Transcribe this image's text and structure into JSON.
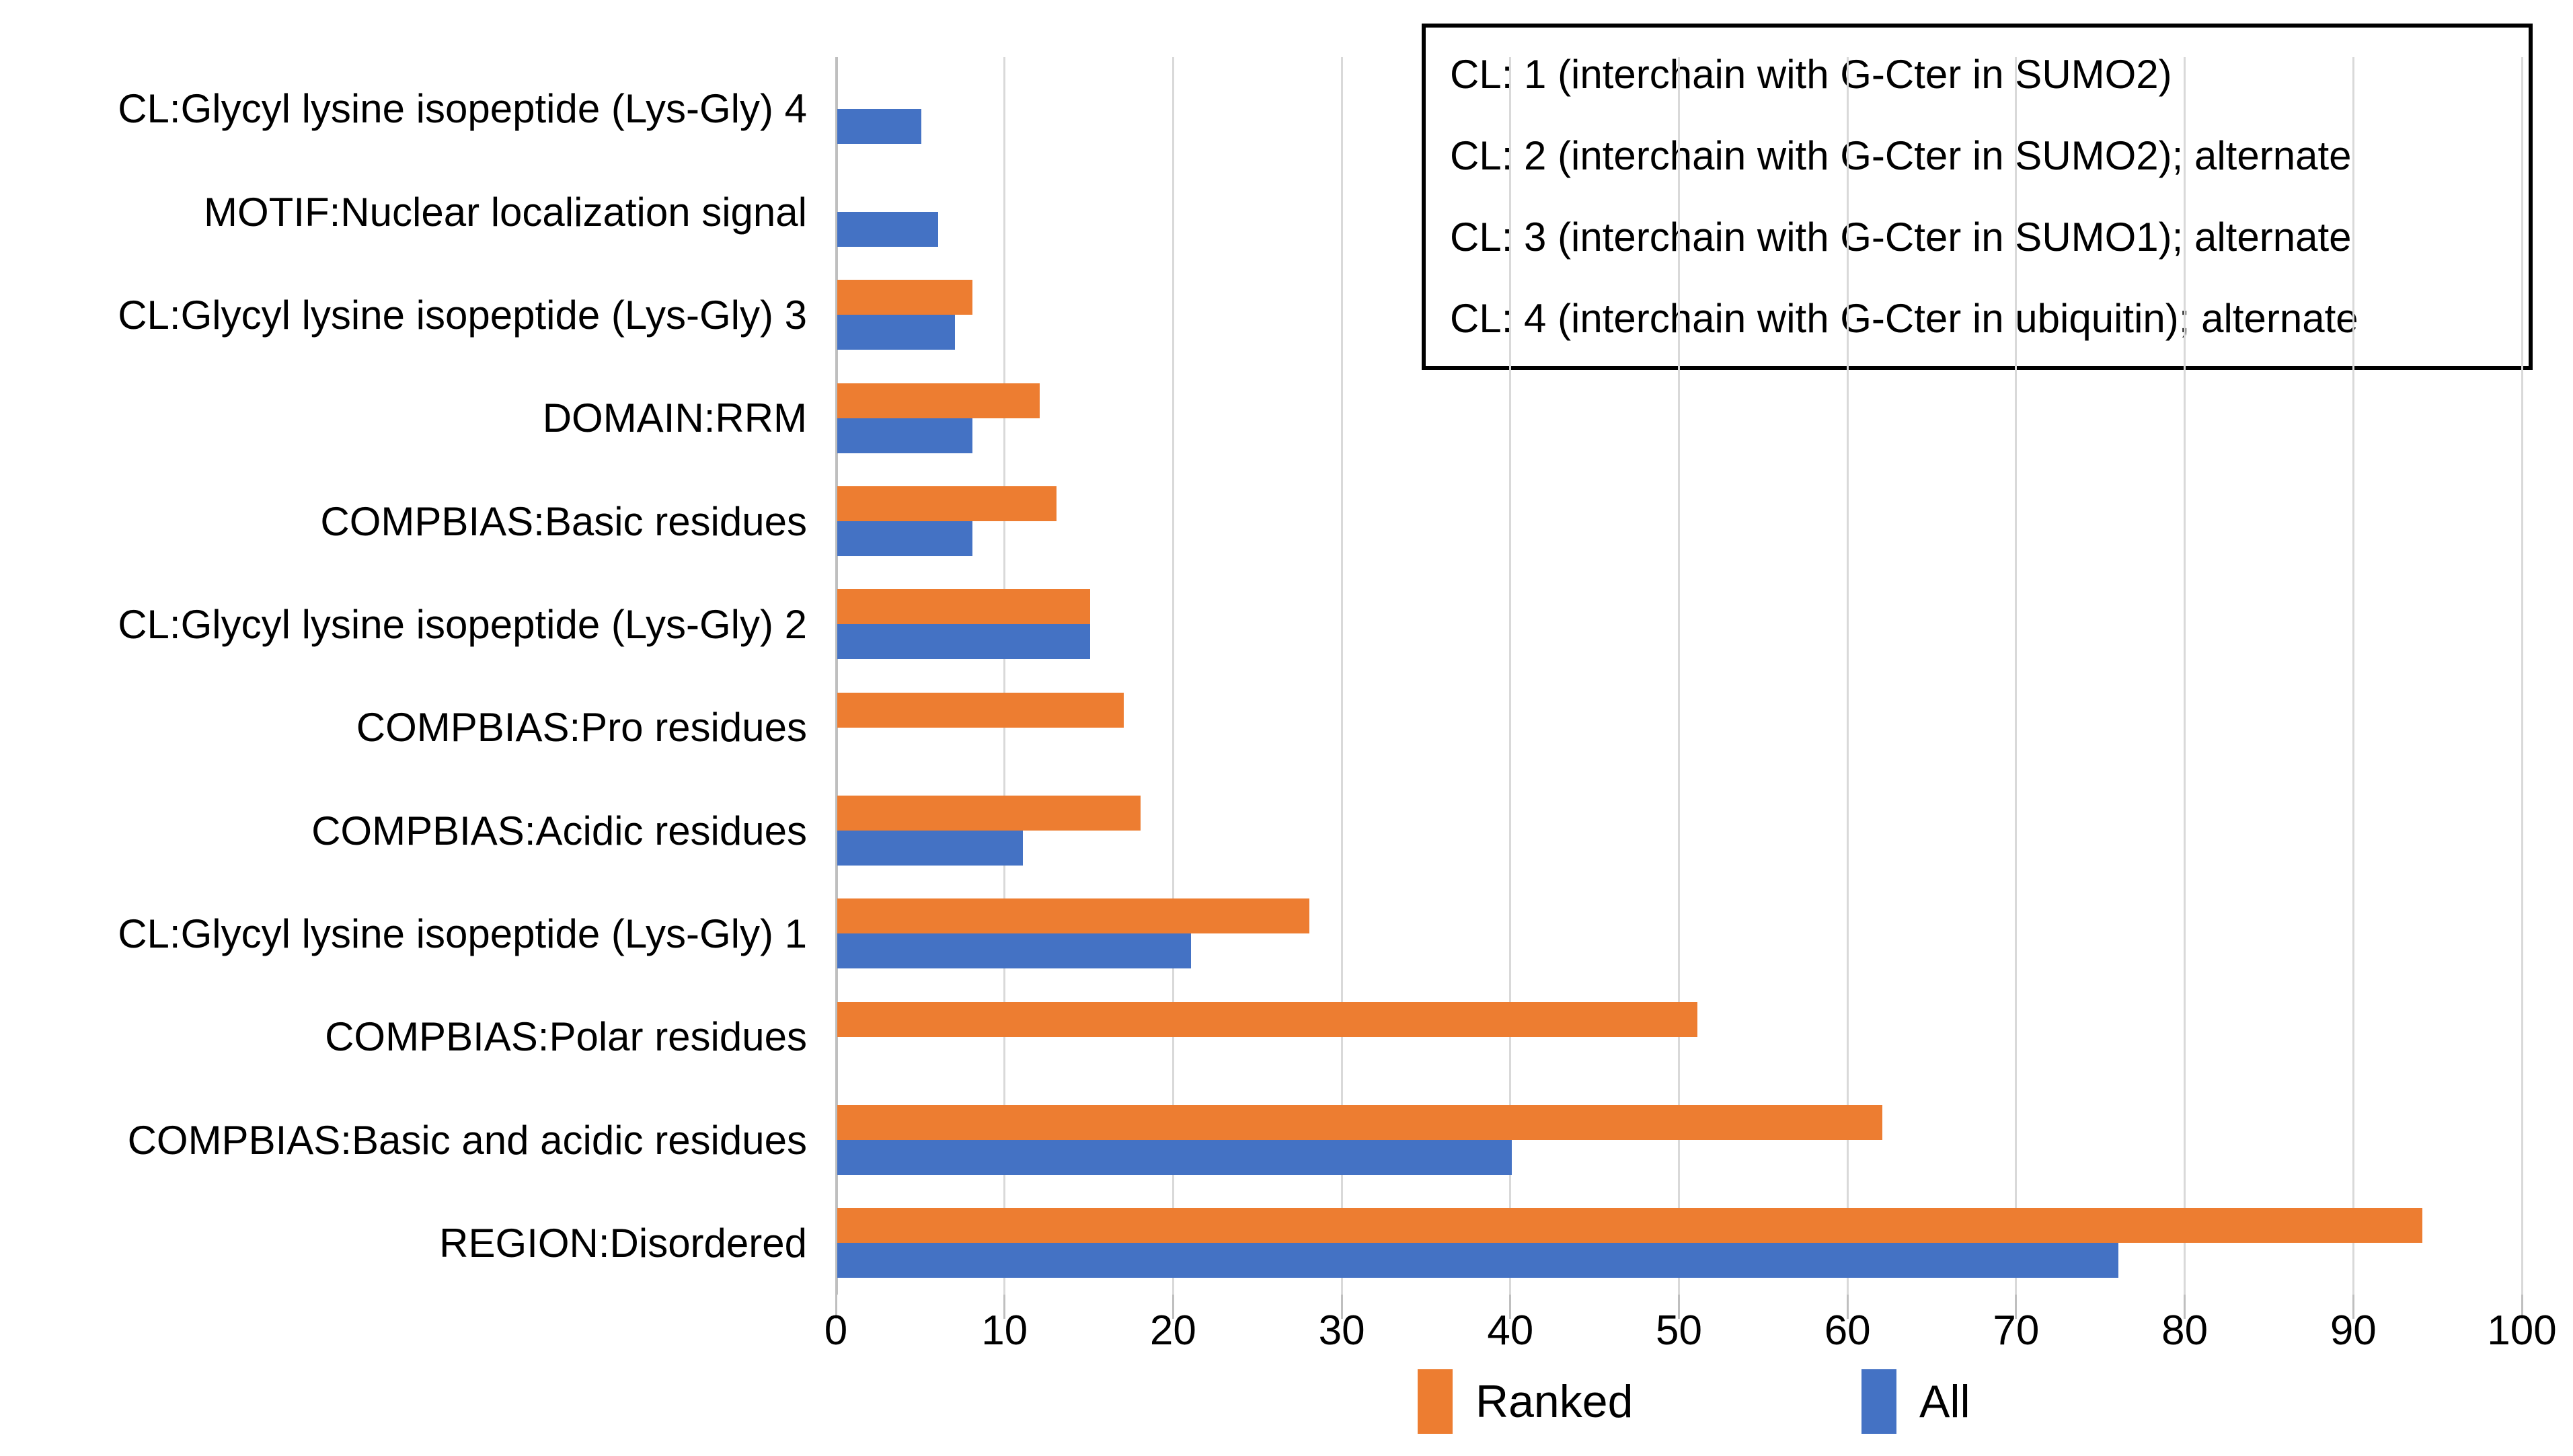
{
  "chart_data": {
    "type": "bar",
    "orientation": "horizontal",
    "title": "",
    "xlabel": "",
    "ylabel": "",
    "xlim": [
      0,
      100
    ],
    "x_ticks": [
      0,
      10,
      20,
      30,
      40,
      50,
      60,
      70,
      80,
      90,
      100
    ],
    "grid": "vertical",
    "legend_position": "bottom",
    "categories": [
      "CL:Glycyl lysine isopeptide (Lys-Gly) 4",
      "MOTIF:Nuclear localization signal",
      "CL:Glycyl lysine isopeptide (Lys-Gly) 3",
      "DOMAIN:RRM",
      "COMPBIAS:Basic residues",
      "CL:Glycyl lysine isopeptide (Lys-Gly) 2",
      "COMPBIAS:Pro residues",
      "COMPBIAS:Acidic residues",
      "CL:Glycyl lysine isopeptide (Lys-Gly) 1",
      "COMPBIAS:Polar residues",
      "COMPBIAS:Basic and acidic residues",
      "REGION:Disordered"
    ],
    "series": [
      {
        "name": "Ranked",
        "color": "#ED7D31",
        "values": [
          0,
          0,
          8,
          12,
          13,
          15,
          17,
          18,
          28,
          51,
          62,
          94
        ]
      },
      {
        "name": "All",
        "color": "#4472C4",
        "values": [
          5,
          6,
          7,
          8,
          8,
          15,
          0,
          11,
          21,
          0,
          40,
          76
        ]
      }
    ]
  },
  "cl_legend": {
    "lines": [
      "CL: 1 (interchain with G-Cter in SUMO2)",
      "CL: 2 (interchain with G-Cter in SUMO2); alternate",
      "CL: 3 (interchain with G-Cter in SUMO1); alternate",
      "CL: 4 (interchain with G-Cter in ubiquitin); alternate"
    ]
  },
  "colors": {
    "gridline": "#D9D9D9",
    "axis": "#BFBFBF",
    "ranked": "#ED7D31",
    "all": "#4472C4"
  }
}
